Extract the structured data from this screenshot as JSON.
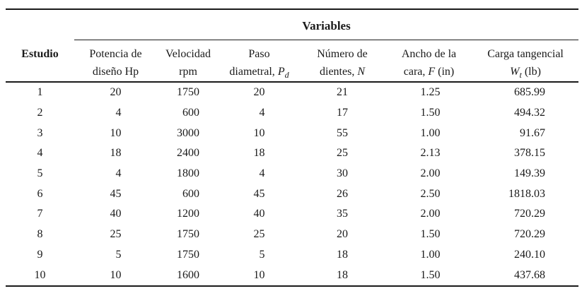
{
  "table": {
    "group_header": "Variables",
    "columns": [
      {
        "id": "estudio",
        "line1": "Estudio",
        "line2_prefix": "",
        "line2_sym": "",
        "line2_sub": "",
        "line2_suffix": ""
      },
      {
        "id": "potencia",
        "line1": "Potencia de",
        "line2_prefix": "diseño Hp",
        "line2_sym": "",
        "line2_sub": "",
        "line2_suffix": ""
      },
      {
        "id": "velocidad",
        "line1": "Velocidad",
        "line2_prefix": "rpm",
        "line2_sym": "",
        "line2_sub": "",
        "line2_suffix": ""
      },
      {
        "id": "paso",
        "line1": "Paso",
        "line2_prefix": "diametral, ",
        "line2_sym": "P",
        "line2_sub": "d",
        "line2_suffix": ""
      },
      {
        "id": "dientes",
        "line1": "Número de",
        "line2_prefix": "dientes, ",
        "line2_sym": "N",
        "line2_sub": "",
        "line2_suffix": ""
      },
      {
        "id": "ancho",
        "line1": "Ancho de la",
        "line2_prefix": "cara, ",
        "line2_sym": "F",
        "line2_sub": "",
        "line2_suffix": " (in)"
      },
      {
        "id": "carga",
        "line1": "Carga tangencial",
        "line2_prefix": "",
        "line2_sym": "W",
        "line2_sub": "t",
        "line2_suffix": " (lb)"
      }
    ],
    "rows": [
      [
        "1",
        "20",
        "1750",
        "20",
        "21",
        "1.25",
        "685.99"
      ],
      [
        "2",
        "4",
        "600",
        "4",
        "17",
        "1.50",
        "494.32"
      ],
      [
        "3",
        "10",
        "3000",
        "10",
        "55",
        "1.00",
        "91.67"
      ],
      [
        "4",
        "18",
        "2400",
        "18",
        "25",
        "2.13",
        "378.15"
      ],
      [
        "5",
        "4",
        "1800",
        "4",
        "30",
        "2.00",
        "149.39"
      ],
      [
        "6",
        "45",
        "600",
        "45",
        "26",
        "2.50",
        "1818.03"
      ],
      [
        "7",
        "40",
        "1200",
        "40",
        "35",
        "2.00",
        "720.29"
      ],
      [
        "8",
        "25",
        "1750",
        "25",
        "20",
        "1.50",
        "720.29"
      ],
      [
        "9",
        "5",
        "1750",
        "5",
        "18",
        "1.00",
        "240.10"
      ],
      [
        "10",
        "10",
        "1600",
        "10",
        "18",
        "1.50",
        "437.68"
      ]
    ],
    "colors": {
      "text": "#1a1a1a",
      "rule": "#1a1a1a",
      "background": "#ffffff"
    }
  }
}
